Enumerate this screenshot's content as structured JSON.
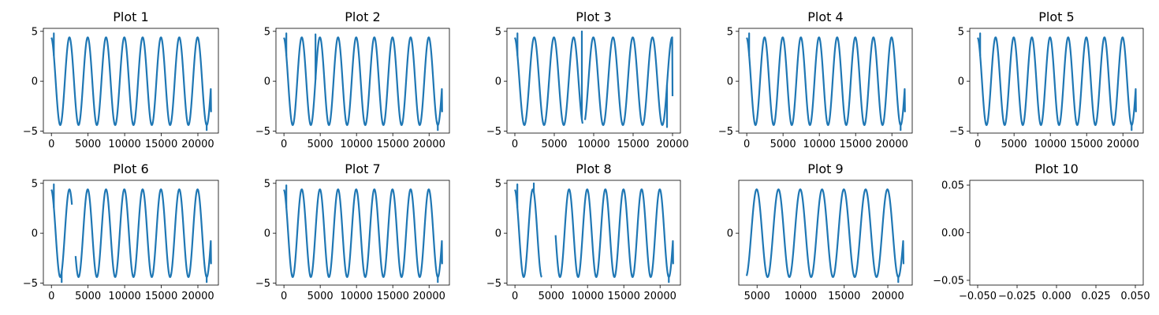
{
  "chart_data": [
    {
      "type": "line",
      "title": "Plot 1",
      "xlim": [
        -1100,
        22800
      ],
      "ylim": [
        -5.2,
        5.3
      ],
      "xticks": [
        0,
        5000,
        10000,
        15000,
        20000
      ],
      "xticklabels": [
        "0",
        "5000",
        "10000",
        "15000",
        "20000"
      ],
      "yticks": [
        -5,
        0,
        5
      ],
      "yticklabels": [
        "−5",
        "0",
        "5"
      ],
      "color": "#1f77b4",
      "series": [
        {
          "period": 2500,
          "amplitude": 4.4,
          "phase": 1.68,
          "x_range": [
            0,
            21800
          ],
          "segments": [
            [
              0,
              21800
            ]
          ],
          "spikes": [
            [
              330,
              4.8
            ],
            [
              21200,
              -4.9
            ]
          ],
          "end_value": -3.1
        }
      ]
    },
    {
      "type": "line",
      "title": "Plot 2",
      "xlim": [
        -1100,
        22800
      ],
      "ylim": [
        -5.2,
        5.3
      ],
      "xticks": [
        0,
        5000,
        10000,
        15000,
        20000
      ],
      "xticklabels": [
        "0",
        "5000",
        "10000",
        "15000",
        "20000"
      ],
      "yticks": [
        -5,
        0,
        5
      ],
      "yticklabels": [
        "−5",
        "0",
        "5"
      ],
      "color": "#1f77b4",
      "series": [
        {
          "period": 2500,
          "amplitude": 4.4,
          "phase": 1.68,
          "x_range": [
            0,
            21800
          ],
          "segments": [
            [
              0,
              21800
            ]
          ],
          "spikes": [
            [
              330,
              4.8
            ],
            [
              4350,
              4.7
            ],
            [
              21200,
              -4.9
            ]
          ],
          "end_value": -3.1
        }
      ]
    },
    {
      "type": "line",
      "title": "Plot 3",
      "xlim": [
        -1000,
        21000
      ],
      "ylim": [
        -5.2,
        5.3
      ],
      "xticks": [
        0,
        5000,
        10000,
        15000,
        20000
      ],
      "xticklabels": [
        "0",
        "5000",
        "10000",
        "15000",
        "20000"
      ],
      "yticks": [
        -5,
        0,
        5
      ],
      "yticklabels": [
        "−5",
        "0",
        "5"
      ],
      "color": "#1f77b4",
      "series": [
        {
          "period": 2500,
          "amplitude": 4.4,
          "phase": 1.68,
          "x_range": [
            0,
            20000
          ],
          "segments": [
            [
              0,
              8600
            ],
            [
              8900,
              20000
            ]
          ],
          "spikes": [
            [
              330,
              4.8
            ],
            [
              8500,
              5.0
            ],
            [
              19300,
              -4.6
            ]
          ],
          "end_value": -1.5
        }
      ]
    },
    {
      "type": "line",
      "title": "Plot 4",
      "xlim": [
        -1100,
        22800
      ],
      "ylim": [
        -5.2,
        5.3
      ],
      "xticks": [
        0,
        5000,
        10000,
        15000,
        20000
      ],
      "xticklabels": [
        "0",
        "5000",
        "10000",
        "15000",
        "20000"
      ],
      "yticks": [
        -5,
        0,
        5
      ],
      "yticklabels": [
        "−5",
        "0",
        "5"
      ],
      "color": "#1f77b4",
      "series": [
        {
          "period": 2500,
          "amplitude": 4.4,
          "phase": 1.68,
          "x_range": [
            0,
            21800
          ],
          "segments": [
            [
              0,
              21800
            ]
          ],
          "spikes": [
            [
              330,
              4.8
            ],
            [
              21200,
              -4.9
            ]
          ],
          "end_value": -3.1
        }
      ]
    },
    {
      "type": "line",
      "title": "Plot 5",
      "xlim": [
        -1100,
        22800
      ],
      "ylim": [
        -5.2,
        5.3
      ],
      "xticks": [
        0,
        5000,
        10000,
        15000,
        20000
      ],
      "xticklabels": [
        "0",
        "5000",
        "10000",
        "15000",
        "20000"
      ],
      "yticks": [
        -5,
        0,
        5
      ],
      "yticklabels": [
        "−5",
        "0",
        "5"
      ],
      "color": "#1f77b4",
      "series": [
        {
          "period": 2500,
          "amplitude": 4.4,
          "phase": 1.68,
          "x_range": [
            0,
            21800
          ],
          "segments": [
            [
              0,
              21800
            ]
          ],
          "spikes": [
            [
              330,
              4.8
            ],
            [
              21200,
              -4.9
            ]
          ],
          "end_value": -3.1
        }
      ]
    },
    {
      "type": "line",
      "title": "Plot 6",
      "xlim": [
        -1100,
        22800
      ],
      "ylim": [
        -5.2,
        5.3
      ],
      "xticks": [
        0,
        5000,
        10000,
        15000,
        20000
      ],
      "xticklabels": [
        "0",
        "5000",
        "10000",
        "15000",
        "20000"
      ],
      "yticks": [
        -5,
        0,
        5
      ],
      "yticklabels": [
        "−5",
        "0",
        "5"
      ],
      "color": "#1f77b4",
      "series": [
        {
          "period": 2500,
          "amplitude": 4.4,
          "phase": 1.68,
          "x_range": [
            0,
            21800
          ],
          "segments": [
            [
              0,
              2800
            ],
            [
              3300,
              21800
            ]
          ],
          "spikes": [
            [
              330,
              4.9
            ],
            [
              1400,
              -4.9
            ],
            [
              21200,
              -4.9
            ]
          ],
          "end_value": -3.1
        }
      ]
    },
    {
      "type": "line",
      "title": "Plot 7",
      "xlim": [
        -1100,
        22800
      ],
      "ylim": [
        -5.2,
        5.3
      ],
      "xticks": [
        0,
        5000,
        10000,
        15000,
        20000
      ],
      "xticklabels": [
        "0",
        "5000",
        "10000",
        "15000",
        "20000"
      ],
      "yticks": [
        -5,
        0,
        5
      ],
      "yticklabels": [
        "−5",
        "0",
        "5"
      ],
      "color": "#1f77b4",
      "series": [
        {
          "period": 2500,
          "amplitude": 4.4,
          "phase": 1.68,
          "x_range": [
            0,
            21800
          ],
          "segments": [
            [
              0,
              21800
            ]
          ],
          "spikes": [
            [
              330,
              4.8
            ],
            [
              21200,
              -4.9
            ]
          ],
          "end_value": -3.1
        }
      ]
    },
    {
      "type": "line",
      "title": "Plot 8",
      "xlim": [
        -1100,
        22800
      ],
      "ylim": [
        -5.2,
        5.3
      ],
      "xticks": [
        0,
        5000,
        10000,
        15000,
        20000
      ],
      "xticklabels": [
        "0",
        "5000",
        "10000",
        "15000",
        "20000"
      ],
      "yticks": [
        -5,
        0,
        5
      ],
      "yticklabels": [
        "−5",
        "0",
        "5"
      ],
      "color": "#1f77b4",
      "series": [
        {
          "period": 2500,
          "amplitude": 4.4,
          "phase": 1.68,
          "x_range": [
            0,
            21800
          ],
          "segments": [
            [
              0,
              3700
            ],
            [
              5600,
              21800
            ]
          ],
          "spikes": [
            [
              330,
              4.9
            ],
            [
              2600,
              5.0
            ],
            [
              21200,
              -4.9
            ]
          ],
          "end_value": -3.1
        }
      ]
    },
    {
      "type": "line",
      "title": "Plot 9",
      "xlim": [
        2900,
        22800
      ],
      "ylim": [
        -5.2,
        5.3
      ],
      "xticks": [
        5000,
        10000,
        15000,
        20000
      ],
      "xticklabels": [
        "5000",
        "10000",
        "15000",
        "20000"
      ],
      "yticks": [
        0
      ],
      "yticklabels": [
        "0"
      ],
      "color": "#1f77b4",
      "series": [
        {
          "period": 2500,
          "amplitude": 4.4,
          "phase": 1.68,
          "x_range": [
            3800,
            21800
          ],
          "segments": [
            [
              3800,
              21800
            ]
          ],
          "spikes": [
            [
              21200,
              -4.9
            ]
          ],
          "end_value": -3.1
        }
      ]
    },
    {
      "type": "line",
      "title": "Plot 10",
      "xlim": [
        -0.055,
        0.055
      ],
      "ylim": [
        -0.055,
        0.055
      ],
      "xticks": [
        -0.05,
        -0.025,
        0,
        0.025,
        0.05
      ],
      "xticklabels": [
        "−0.050",
        "−0.025",
        "0.000",
        "0.025",
        "0.050"
      ],
      "yticks": [
        -0.05,
        0,
        0.05
      ],
      "yticklabels": [
        "−0.05",
        "0.00",
        "0.05"
      ],
      "color": "#1f77b4",
      "series": []
    }
  ]
}
